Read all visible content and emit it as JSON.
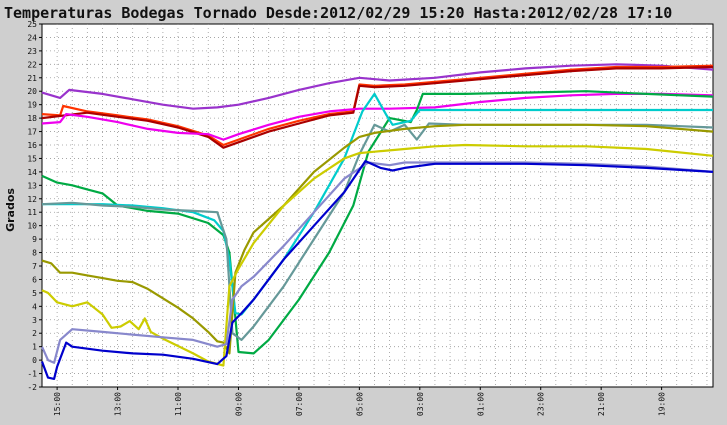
{
  "chart_data": {
    "type": "line",
    "title": "Temperaturas Bodegas Tornado Desde:2012/02/29 15:20 Hasta:2012/02/28 17:10",
    "xlabel": "",
    "ylabel": "Grados",
    "x_tick_labels": [
      "15:00",
      "13:00",
      "11:00",
      "09:00",
      "07:00",
      "05:00",
      "03:00",
      "01:00",
      "23:00",
      "21:00",
      "19:00"
    ],
    "x_tick_positions": [
      0.5,
      2.5,
      4.5,
      6.5,
      8.5,
      10.5,
      12.5,
      14.5,
      16.5,
      18.5,
      20.5
    ],
    "xlim": [
      0,
      22.2
    ],
    "ylim": [
      -2,
      25
    ],
    "y_ticks": [
      -2,
      -1,
      0,
      1,
      2,
      3,
      4,
      5,
      6,
      7,
      8,
      9,
      10,
      11,
      12,
      13,
      14,
      15,
      16,
      17,
      18,
      19,
      20,
      21,
      22,
      23,
      24,
      25
    ],
    "grid": true,
    "legend": "none",
    "series": [
      {
        "color": "#9933cc",
        "x": [
          0,
          0.6,
          0.9,
          2,
          3,
          4,
          5,
          5.8,
          6.5,
          7.5,
          8.5,
          9.5,
          10.5,
          11.5,
          13,
          14.5,
          16,
          17.5,
          19,
          20.5,
          22.2
        ],
        "y": [
          19.9,
          19.5,
          20.1,
          19.8,
          19.4,
          19.0,
          18.7,
          18.8,
          19.0,
          19.5,
          20.1,
          20.6,
          21.0,
          20.8,
          21.0,
          21.4,
          21.7,
          21.9,
          22.0,
          21.9,
          21.6
        ]
      },
      {
        "color": "#ff3300",
        "x": [
          0,
          0.6,
          0.7,
          1.5,
          2.5,
          3.5,
          4.5,
          5.5,
          6,
          6.5,
          7.5,
          8.5,
          9.5,
          10.3,
          10.5,
          11,
          12,
          13,
          14.5,
          16,
          17.5,
          19,
          20.5,
          22.2
        ],
        "y": [
          18.3,
          18.2,
          18.9,
          18.5,
          18.2,
          17.9,
          17.4,
          16.7,
          16.0,
          16.4,
          17.2,
          17.8,
          18.3,
          18.5,
          20.5,
          20.4,
          20.5,
          20.7,
          21.0,
          21.3,
          21.6,
          21.8,
          21.8,
          21.9
        ]
      },
      {
        "color": "#aa0000",
        "x": [
          0,
          1.5,
          2.5,
          3.5,
          4.5,
          5.5,
          6,
          6.5,
          7.5,
          8.5,
          9.5,
          10.3,
          10.5,
          11,
          12,
          13,
          14.5,
          16,
          17.5,
          19,
          20.5,
          22.2
        ],
        "y": [
          18.0,
          18.4,
          18.1,
          17.8,
          17.3,
          16.6,
          15.8,
          16.2,
          17.0,
          17.6,
          18.2,
          18.4,
          20.4,
          20.3,
          20.4,
          20.6,
          20.9,
          21.2,
          21.5,
          21.7,
          21.7,
          21.8
        ]
      },
      {
        "color": "#ee00ee",
        "x": [
          0,
          0.6,
          0.8,
          1.5,
          2.5,
          3.5,
          4.5,
          5.5,
          6,
          6.5,
          7.5,
          8.5,
          9.5,
          10.5,
          11.5,
          13,
          14.5,
          16,
          17.5,
          19,
          20.5,
          22.2
        ],
        "y": [
          17.6,
          17.7,
          18.3,
          18.1,
          17.7,
          17.2,
          16.9,
          16.8,
          16.4,
          16.8,
          17.5,
          18.1,
          18.5,
          18.7,
          18.7,
          18.8,
          19.2,
          19.5,
          19.7,
          19.8,
          19.8,
          19.7
        ]
      },
      {
        "color": "#00aa44",
        "x": [
          0,
          0.5,
          1,
          1.5,
          2,
          2.5,
          3.5,
          4.5,
          5.5,
          6,
          6.2,
          6.5,
          7,
          7.5,
          8.5,
          9.5,
          10.3,
          10.8,
          11.5,
          12.2,
          12.4,
          12.6,
          13,
          14,
          16,
          18,
          20,
          22.2
        ],
        "y": [
          13.7,
          13.2,
          13.0,
          12.7,
          12.4,
          11.5,
          11.1,
          10.9,
          10.2,
          9.3,
          8.0,
          0.6,
          0.5,
          1.5,
          4.5,
          8.0,
          11.5,
          15.5,
          18.0,
          17.7,
          18.6,
          19.8,
          19.8,
          19.8,
          19.9,
          20.0,
          19.8,
          19.6
        ]
      },
      {
        "color": "#00cccc",
        "x": [
          0,
          2,
          3,
          4,
          5,
          5.7,
          6.0,
          6.2,
          6.4,
          6.6,
          7,
          8,
          9,
          10,
          10.6,
          11.0,
          11.4,
          11.6,
          12.2,
          12.5,
          13,
          14,
          16,
          18,
          20,
          22.2
        ],
        "y": [
          11.6,
          11.6,
          11.5,
          11.3,
          11.0,
          10.4,
          9.6,
          7.5,
          3.5,
          3.4,
          4.5,
          7.5,
          11.0,
          15.0,
          18.5,
          19.8,
          18.2,
          17.5,
          17.8,
          18.6,
          18.6,
          18.6,
          18.6,
          18.6,
          18.6,
          18.6
        ]
      },
      {
        "color": "#669999",
        "x": [
          0,
          1,
          2,
          3,
          4,
          5,
          5.8,
          6.1,
          6.3,
          6.6,
          7,
          8,
          9,
          10,
          10.5,
          11.0,
          11.5,
          12,
          12.4,
          12.8,
          14,
          16,
          18,
          20,
          22.2
        ],
        "y": [
          11.6,
          11.7,
          11.5,
          11.4,
          11.2,
          11.1,
          11.0,
          9.0,
          2.0,
          1.5,
          2.5,
          5.5,
          9.0,
          12.5,
          15.3,
          17.5,
          17.0,
          17.5,
          16.4,
          17.6,
          17.5,
          17.5,
          17.5,
          17.5,
          17.3
        ]
      },
      {
        "color": "#999900",
        "x": [
          0,
          0.3,
          0.6,
          1,
          1.5,
          2,
          2.5,
          3,
          3.5,
          4,
          4.5,
          5,
          5.5,
          5.8,
          6,
          6.2,
          6.4,
          6.7,
          7,
          8,
          9,
          10,
          10.5,
          11,
          12,
          13,
          14,
          16,
          18,
          20,
          22.2
        ],
        "y": [
          7.4,
          7.2,
          6.5,
          6.5,
          6.3,
          6.1,
          5.9,
          5.8,
          5.3,
          4.6,
          3.9,
          3.1,
          2.1,
          1.4,
          1.3,
          0.5,
          6.5,
          8.2,
          9.5,
          11.5,
          14.0,
          15.8,
          16.6,
          16.9,
          17.2,
          17.4,
          17.5,
          17.5,
          17.5,
          17.4,
          17.0
        ]
      },
      {
        "color": "#cccc00",
        "x": [
          0,
          0.2,
          0.5,
          1,
          1.5,
          2,
          2.3,
          2.6,
          2.9,
          3.2,
          3.4,
          3.6,
          4,
          5,
          5.5,
          6,
          6.2,
          6.5,
          7,
          8,
          9,
          10,
          10.5,
          11,
          12,
          13,
          14,
          16,
          18,
          20,
          22.2
        ],
        "y": [
          5.2,
          5.0,
          4.3,
          4.0,
          4.3,
          3.4,
          2.4,
          2.5,
          2.9,
          2.3,
          3.1,
          2.1,
          1.6,
          0.5,
          -0.1,
          -0.4,
          5.5,
          6.8,
          8.7,
          11.5,
          13.5,
          15.0,
          15.4,
          15.5,
          15.7,
          15.9,
          16.0,
          15.9,
          15.9,
          15.7,
          15.2
        ]
      },
      {
        "color": "#8888cc",
        "x": [
          0,
          0.2,
          0.4,
          0.6,
          1,
          2,
          3,
          4,
          5,
          5.8,
          6.1,
          6.3,
          6.6,
          7,
          8,
          9,
          10,
          10.8,
          11.5,
          12,
          13,
          14,
          16,
          18,
          20,
          22.2
        ],
        "y": [
          1.0,
          0.0,
          -0.2,
          1.5,
          2.3,
          2.1,
          1.9,
          1.7,
          1.5,
          1.0,
          1.2,
          4.5,
          5.5,
          6.2,
          8.5,
          11.0,
          13.5,
          14.7,
          14.5,
          14.7,
          14.7,
          14.7,
          14.7,
          14.6,
          14.4,
          14.0
        ]
      },
      {
        "color": "#0000cc",
        "x": [
          0,
          0.2,
          0.4,
          0.5,
          0.8,
          1,
          2,
          3,
          4,
          5,
          5.8,
          6.1,
          6.3,
          6.6,
          7,
          8,
          9,
          10,
          10.7,
          11.2,
          11.6,
          12,
          13,
          14,
          16,
          18,
          20,
          22.2
        ],
        "y": [
          -0.1,
          -1.3,
          -1.4,
          -0.5,
          1.3,
          1.0,
          0.7,
          0.5,
          0.4,
          0.1,
          -0.3,
          0.3,
          2.8,
          3.5,
          4.5,
          7.5,
          10.0,
          12.5,
          14.8,
          14.3,
          14.1,
          14.3,
          14.6,
          14.6,
          14.6,
          14.5,
          14.3,
          14.0
        ]
      }
    ]
  }
}
